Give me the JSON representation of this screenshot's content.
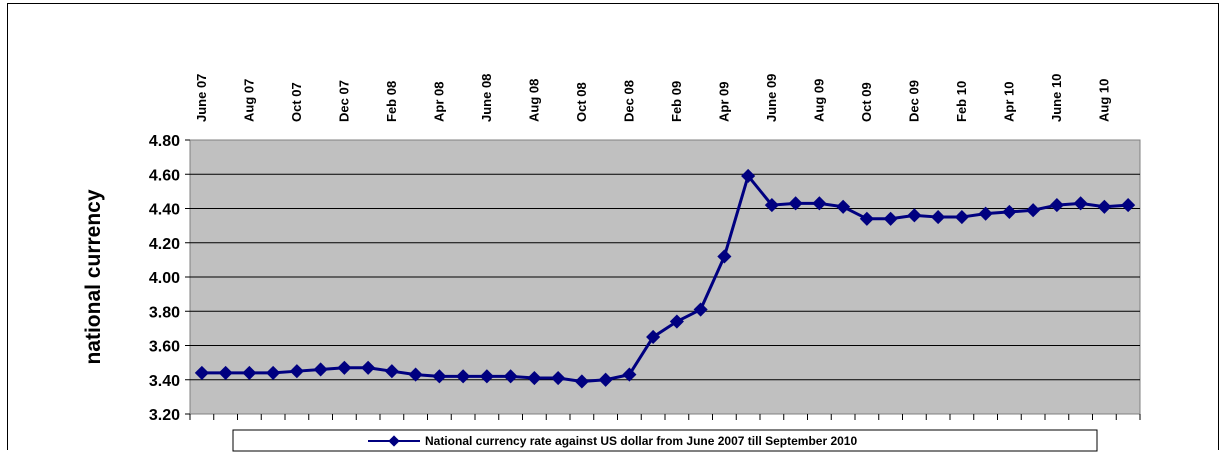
{
  "chart_data": {
    "type": "line",
    "title": "",
    "xlabel": "",
    "ylabel": "national currency",
    "ylim": [
      3.2,
      4.8
    ],
    "ystep": 0.2,
    "grid": true,
    "legend_position": "bottom",
    "plot_background": "#c0c0c0",
    "line_color": "#000080",
    "x_tick_labels": [
      "June 07",
      "Aug 07",
      "Oct 07",
      "Dec 07",
      "Feb 08",
      "Apr 08",
      "June 08",
      "Aug 08",
      "Oct 08",
      "Dec 08",
      "Feb 09",
      "Apr 09",
      "June 09",
      "Aug 09",
      "Oct 09",
      "Dec 09",
      "Feb 10",
      "Apr 10",
      "June 10",
      "Aug 10"
    ],
    "y_tick_labels": [
      "3.20",
      "3.40",
      "3.60",
      "3.80",
      "4.00",
      "4.20",
      "4.40",
      "4.60",
      "4.80"
    ],
    "series": [
      {
        "name": "National currency rate against US dollar from June 2007 till September 2010",
        "values": [
          3.44,
          3.44,
          3.44,
          3.44,
          3.45,
          3.46,
          3.47,
          3.47,
          3.45,
          3.43,
          3.42,
          3.42,
          3.42,
          3.42,
          3.41,
          3.41,
          3.39,
          3.4,
          3.43,
          3.65,
          3.74,
          3.81,
          4.12,
          4.59,
          4.42,
          4.43,
          4.43,
          4.41,
          4.34,
          4.34,
          4.36,
          4.35,
          4.35,
          4.37,
          4.38,
          4.39,
          4.42,
          4.43,
          4.41,
          4.42
        ]
      }
    ]
  }
}
